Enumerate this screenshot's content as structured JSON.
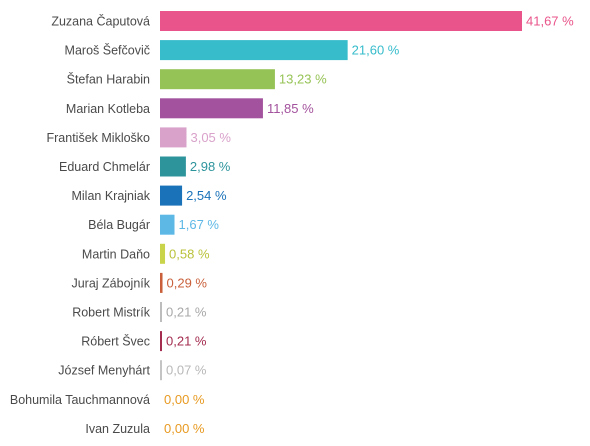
{
  "chart_data": {
    "type": "bar",
    "orientation": "horizontal",
    "categories": [
      "Zuzana Čaputová",
      "Maroš Šefčovič",
      "Štefan Harabin",
      "Marian Kotleba",
      "František Mikloško",
      "Eduard Chmelár",
      "Milan Krajniak",
      "Béla Bugár",
      "Martin Daňo",
      "Juraj Zábojník",
      "Robert Mistrík",
      "Róbert Švec",
      "József Menyhárt",
      "Bohumila Tauchmannová",
      "Ivan Zuzula"
    ],
    "values": [
      41.67,
      21.6,
      13.23,
      11.85,
      3.05,
      2.98,
      2.54,
      1.67,
      0.58,
      0.29,
      0.21,
      0.21,
      0.07,
      0.0,
      0.0
    ],
    "value_labels": [
      "41,67 %",
      "21,60 %",
      "13,23 %",
      "11,85 %",
      "3,05 %",
      "2,98 %",
      "2,54 %",
      "1,67 %",
      "0,58 %",
      "0,29 %",
      "0,21 %",
      "0,21 %",
      "0,07 %",
      "0,00 %",
      "0,00 %"
    ],
    "colors": [
      "#e9548a",
      "#36bccb",
      "#96c356",
      "#a3529d",
      "#d9a2ca",
      "#2e949c",
      "#1a72b8",
      "#5db8e6",
      "#c9d44a",
      "#c9603b",
      "#bdbdbd",
      "#a32c4f",
      "#c4c4c4",
      "#e89a22",
      "#e89a22"
    ],
    "label_colors": [
      "#e9548a",
      "#36bccb",
      "#96c356",
      "#a3529d",
      "#d9a2ca",
      "#2e949c",
      "#1a72b8",
      "#5db8e6",
      "#b9c23a",
      "#c9603b",
      "#a8a8a8",
      "#a32c4f",
      "#b8b8b8",
      "#e89a22",
      "#e89a22"
    ],
    "xlim": [
      0,
      41.67
    ],
    "grid": false,
    "legend": "none",
    "title": "",
    "xlabel": "",
    "ylabel": ""
  }
}
